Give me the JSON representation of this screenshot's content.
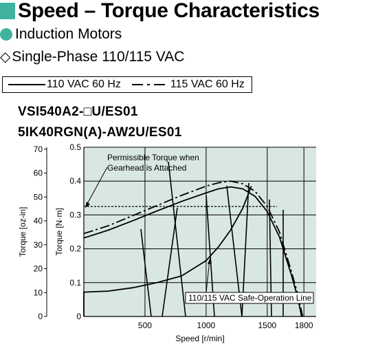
{
  "header": {
    "title": "Speed – Torque Characteristics",
    "subtitle": "Induction Motors",
    "supply": "Single-Phase 110/115 VAC",
    "accent_color": "#3fb39d",
    "title_icon": "square-icon",
    "subtitle_icon": "circle-icon",
    "supply_icon": "diamond-icon"
  },
  "legend": {
    "solid_label": "110 VAC 60 Hz",
    "dashed_label": "115 VAC 60 Hz"
  },
  "models": {
    "line1": "VSI540A2-□U/ES01",
    "line2": "5IK40RGN(A)-AW2U/ES01"
  },
  "chart_data": {
    "type": "line",
    "xlabel": "Speed [r/min]",
    "ylabel": "Torque [N·m]",
    "ylabel_secondary": "Torque [oz-in]",
    "x_ticks": [
      500,
      1000,
      1500,
      1800
    ],
    "y_ticks": [
      0,
      0.1,
      0.2,
      0.3,
      0.4,
      0.5
    ],
    "y_ticks_secondary": [
      0,
      10,
      20,
      30,
      40,
      50,
      60,
      70
    ],
    "xlim": [
      0,
      1900
    ],
    "ylim": [
      0,
      0.5
    ],
    "ylim_secondary": [
      0,
      70.8
    ],
    "grid": true,
    "series": [
      {
        "name": "110 VAC 60 Hz",
        "style": "solid",
        "x": [
          0,
          200,
          400,
          600,
          800,
          1000,
          1100,
          1200,
          1300,
          1400,
          1500,
          1600,
          1700,
          1750,
          1780
        ],
        "y": [
          0.232,
          0.255,
          0.283,
          0.312,
          0.34,
          0.365,
          0.377,
          0.383,
          0.377,
          0.355,
          0.31,
          0.235,
          0.12,
          0.055,
          0.0
        ]
      },
      {
        "name": "115 VAC 60 Hz",
        "style": "dash-dot",
        "x": [
          0,
          200,
          400,
          600,
          800,
          1000,
          1100,
          1200,
          1300,
          1400,
          1500,
          1600,
          1700,
          1750,
          1790
        ],
        "y": [
          0.245,
          0.268,
          0.298,
          0.328,
          0.358,
          0.385,
          0.395,
          0.4,
          0.392,
          0.37,
          0.325,
          0.25,
          0.13,
          0.065,
          0.0
        ]
      },
      {
        "name": "110/115 VAC Safe-Operation Line",
        "style": "solid",
        "x": [
          0,
          0,
          200,
          400,
          600,
          800,
          1000,
          1100,
          1200,
          1300,
          1370
        ],
        "y": [
          0.0,
          0.072,
          0.075,
          0.085,
          0.1,
          0.12,
          0.165,
          0.205,
          0.255,
          0.32,
          0.385
        ]
      }
    ],
    "reference_lines": [
      {
        "label": "Permissible Torque when Gearhead is Attached",
        "y": 0.325,
        "style": "dashed"
      }
    ],
    "annotations": {
      "permissible_line1": "Permissible Torque when",
      "permissible_line2": "Gearhead is Attached",
      "safe_operation": "110/115 VAC Safe-Operation Line"
    },
    "colors": {
      "plot_background": "#d9e7e3",
      "line": "#000000"
    }
  }
}
